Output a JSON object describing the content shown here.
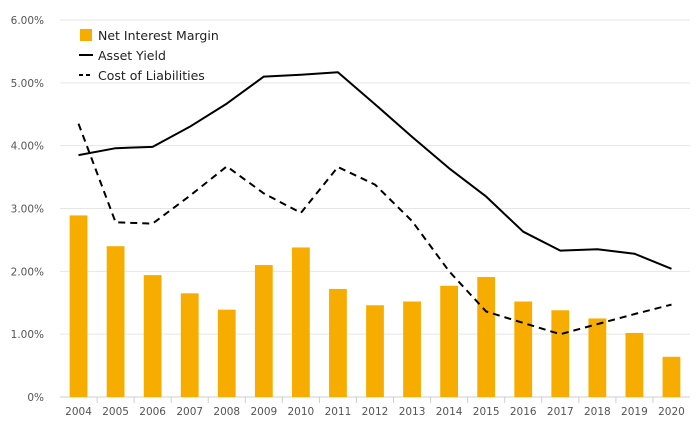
{
  "chart_data": {
    "type": "bar",
    "categories": [
      "2004",
      "2005",
      "2006",
      "2007",
      "2008",
      "2009",
      "2010",
      "2011",
      "2012",
      "2013",
      "2014",
      "2015",
      "2016",
      "2017",
      "2018",
      "2019",
      "2020"
    ],
    "series": [
      {
        "name": "Net Interest Margin",
        "type": "bar",
        "color": "#f7ad00",
        "values": [
          2.89,
          2.4,
          1.94,
          1.65,
          1.39,
          2.1,
          2.38,
          1.72,
          1.46,
          1.52,
          1.77,
          1.91,
          1.52,
          1.38,
          1.25,
          1.02,
          0.64
        ]
      },
      {
        "name": "Asset Yield",
        "type": "line",
        "dash": "solid",
        "color": "#000000",
        "values": [
          3.85,
          3.96,
          3.98,
          4.3,
          4.67,
          5.1,
          5.13,
          5.17,
          4.66,
          4.14,
          3.64,
          3.19,
          2.63,
          2.33,
          2.35,
          2.28,
          2.04
        ]
      },
      {
        "name": "Cost of Liabilities",
        "type": "line",
        "dash": "dashed",
        "color": "#000000",
        "values": [
          4.35,
          2.78,
          2.76,
          3.2,
          3.67,
          3.24,
          2.93,
          3.66,
          3.38,
          2.8,
          2.0,
          1.36,
          1.18,
          1.0,
          1.16,
          1.32,
          1.47
        ]
      }
    ],
    "y_ticks": [
      "0%",
      "1.00%",
      "2.00%",
      "3.00%",
      "4.00%",
      "5.00%",
      "6.00%"
    ],
    "ylim": [
      0,
      6
    ],
    "grid": true,
    "legend_position": "top-left"
  }
}
